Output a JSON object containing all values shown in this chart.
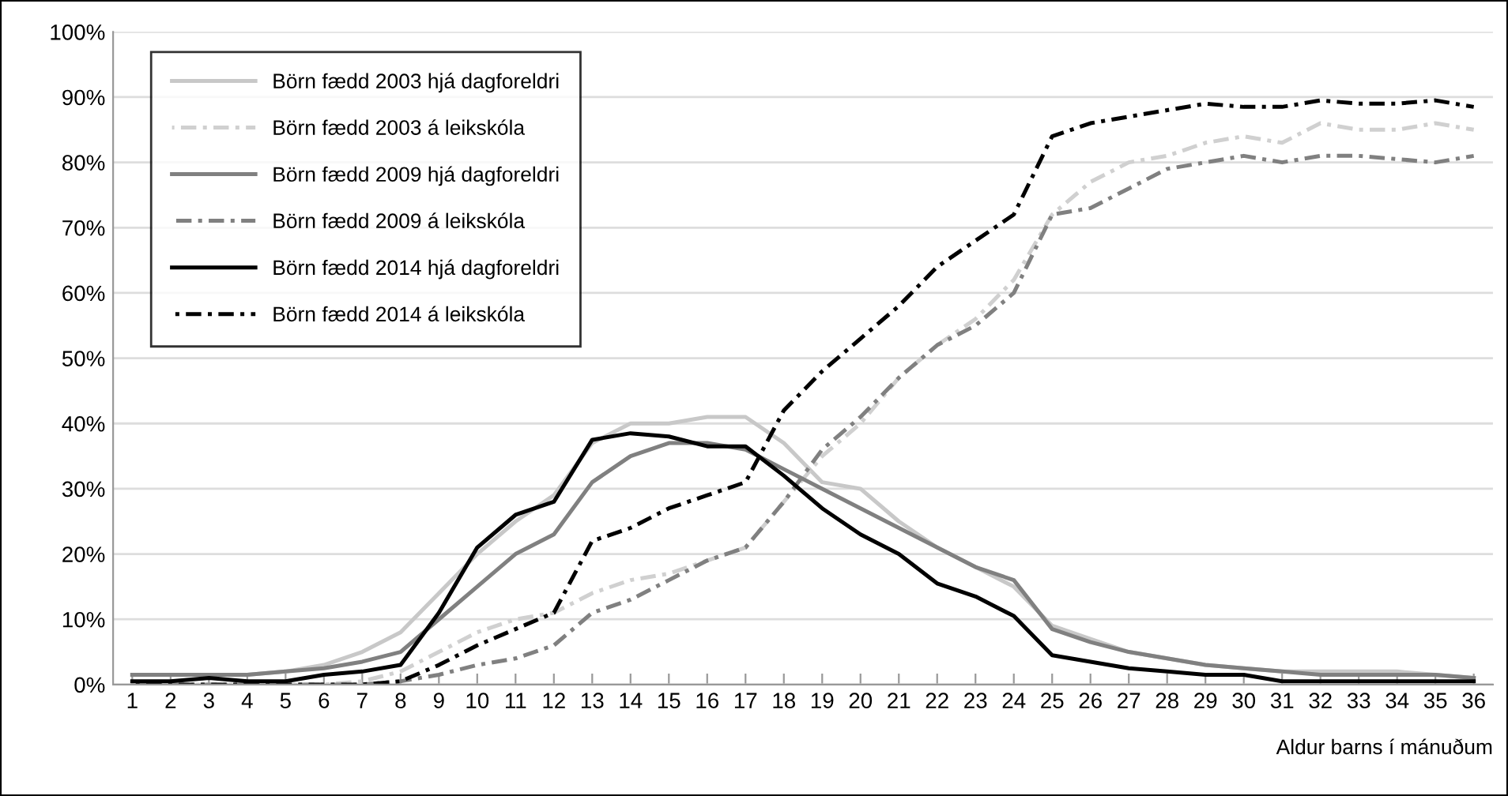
{
  "chart_data": {
    "type": "line",
    "xlabel": "Aldur barns í mánuðum",
    "categories": [
      "1",
      "2",
      "3",
      "4",
      "5",
      "6",
      "7",
      "8",
      "9",
      "10",
      "11",
      "12",
      "13",
      "14",
      "15",
      "16",
      "17",
      "18",
      "19",
      "20",
      "21",
      "22",
      "23",
      "24",
      "25",
      "26",
      "27",
      "28",
      "29",
      "30",
      "31",
      "32",
      "33",
      "34",
      "35",
      "36"
    ],
    "ylim": [
      0,
      100
    ],
    "yticks": [
      {
        "value": 0,
        "label": "0%"
      },
      {
        "value": 10,
        "label": "10%"
      },
      {
        "value": 20,
        "label": "20%"
      },
      {
        "value": 30,
        "label": "30%"
      },
      {
        "value": 40,
        "label": "40%"
      },
      {
        "value": 50,
        "label": "50%"
      },
      {
        "value": 60,
        "label": "60%"
      },
      {
        "value": 70,
        "label": "70%"
      },
      {
        "value": 80,
        "label": "80%"
      },
      {
        "value": 90,
        "label": "90%"
      },
      {
        "value": 100,
        "label": "100%"
      }
    ],
    "grid": "y",
    "legend": "top left",
    "series": [
      {
        "name": "Börn fædd 2003 hjá dagforeldri",
        "color": "#c8c8c8",
        "line_style": "solid",
        "values": [
          1.5,
          1.5,
          1.5,
          1.5,
          2,
          3,
          5,
          8,
          14,
          20,
          25,
          29,
          37,
          40,
          40,
          41,
          41,
          37,
          31,
          30,
          25,
          21,
          18,
          15,
          9,
          7,
          5,
          4,
          3,
          2.5,
          2,
          2,
          2,
          2,
          1.5,
          1
        ]
      },
      {
        "name": "Börn fædd 2003 á leikskóla",
        "color": "#d0d0d0",
        "line_style": "dashdot",
        "values": [
          0,
          0,
          0,
          0,
          0,
          0,
          0.5,
          2,
          5,
          8,
          10,
          11,
          14,
          16,
          17,
          19,
          21,
          28,
          35,
          40,
          47,
          52,
          56,
          62,
          72,
          77,
          80,
          81,
          83,
          84,
          83,
          86,
          85,
          85,
          86,
          85
        ]
      },
      {
        "name": "Börn fædd 2009 hjá dagforeldri",
        "color": "#808080",
        "line_style": "solid",
        "values": [
          1.5,
          1.5,
          1.5,
          1.5,
          2,
          2.5,
          3.5,
          5,
          10,
          15,
          20,
          23,
          31,
          35,
          37,
          37,
          36,
          33,
          30,
          27,
          24,
          21,
          18,
          16,
          8.5,
          6.5,
          5,
          4,
          3,
          2.5,
          2,
          1.5,
          1.5,
          1.5,
          1.5,
          1
        ]
      },
      {
        "name": "Börn fædd 2009 á leikskóla",
        "color": "#808080",
        "line_style": "dashdot",
        "values": [
          0,
          0,
          0,
          0,
          0,
          0,
          0,
          0.5,
          1.5,
          3,
          4,
          6,
          11,
          13,
          16,
          19,
          21,
          28,
          36,
          41,
          47,
          52,
          55,
          60,
          72,
          73,
          76,
          79,
          80,
          81,
          80,
          81,
          81,
          80.5,
          80,
          81
        ]
      },
      {
        "name": "Börn fædd 2014 hjá dagforeldri",
        "color": "#000000",
        "line_style": "solid",
        "values": [
          0.5,
          0.5,
          1,
          0.5,
          0.5,
          1.5,
          2,
          3,
          11,
          21,
          26,
          28,
          37.5,
          38.5,
          38,
          36.5,
          36.5,
          32,
          27,
          23,
          20,
          15.5,
          13.5,
          10.5,
          4.5,
          3.5,
          2.5,
          2,
          1.5,
          1.5,
          0.5,
          0.5,
          0.5,
          0.5,
          0.5,
          0.5
        ]
      },
      {
        "name": "Börn fædd 2014 á leikskóla",
        "color": "#000000",
        "line_style": "dashdot",
        "values": [
          0,
          0,
          0,
          0,
          0,
          0,
          0,
          0.5,
          3,
          6,
          8.5,
          11,
          22,
          24,
          27,
          29,
          31,
          42,
          48,
          53,
          58,
          64,
          68,
          72,
          84,
          86,
          87,
          88,
          89,
          88.5,
          88.5,
          89.5,
          89,
          89,
          89.5,
          88.5
        ]
      }
    ]
  }
}
